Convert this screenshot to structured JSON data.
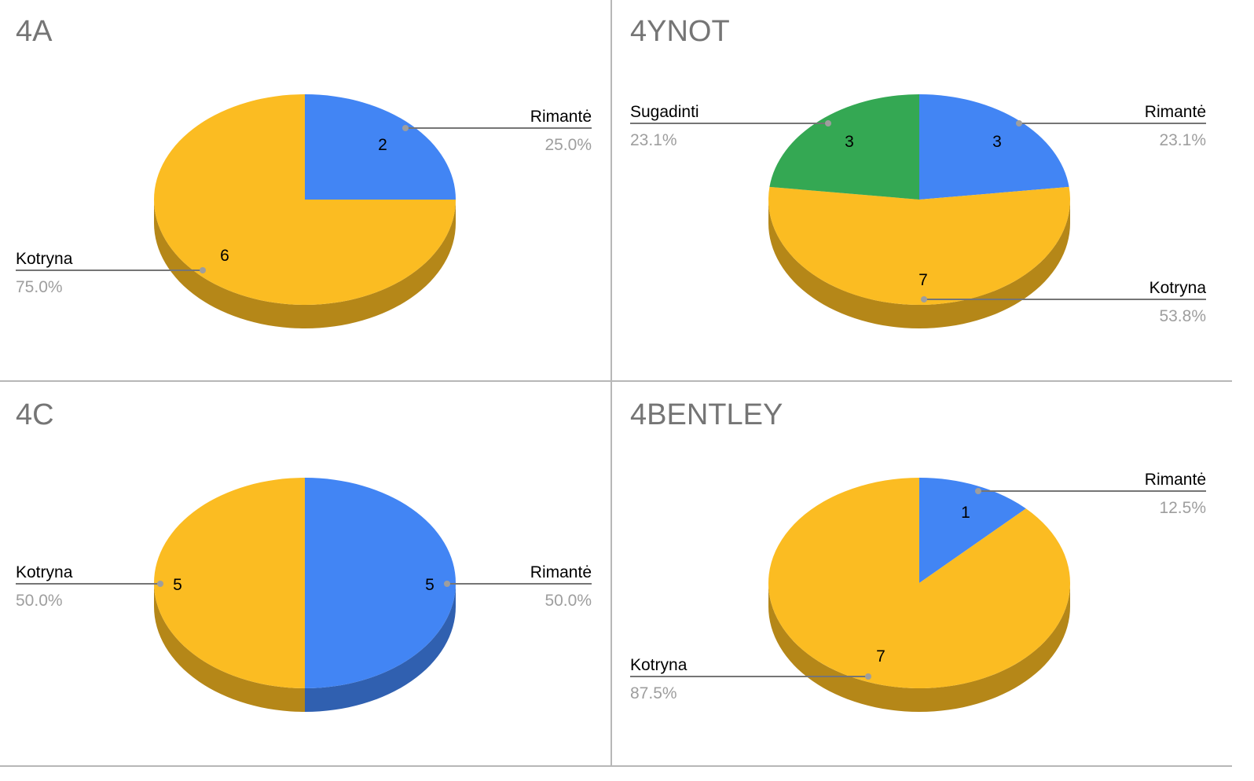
{
  "colors": {
    "Rimantė": "#4285f4",
    "Kotryna": "#fbbc22",
    "Sugadinti": "#34a853"
  },
  "chart_data": [
    {
      "type": "pie",
      "title": "4A",
      "slices": [
        {
          "label": "Rimantė",
          "value": 2,
          "percent": "25.0%"
        },
        {
          "label": "Kotryna",
          "value": 6,
          "percent": "75.0%"
        }
      ]
    },
    {
      "type": "pie",
      "title": "4YNOT",
      "slices": [
        {
          "label": "Rimantė",
          "value": 3,
          "percent": "23.1%"
        },
        {
          "label": "Kotryna",
          "value": 7,
          "percent": "53.8%"
        },
        {
          "label": "Sugadinti",
          "value": 3,
          "percent": "23.1%"
        }
      ]
    },
    {
      "type": "pie",
      "title": "4C",
      "slices": [
        {
          "label": "Rimantė",
          "value": 5,
          "percent": "50.0%"
        },
        {
          "label": "Kotryna",
          "value": 5,
          "percent": "50.0%"
        }
      ]
    },
    {
      "type": "pie",
      "title": "4BENTLEY",
      "slices": [
        {
          "label": "Rimantė",
          "value": 1,
          "percent": "12.5%"
        },
        {
          "label": "Kotryna",
          "value": 7,
          "percent": "87.5%"
        }
      ]
    }
  ]
}
